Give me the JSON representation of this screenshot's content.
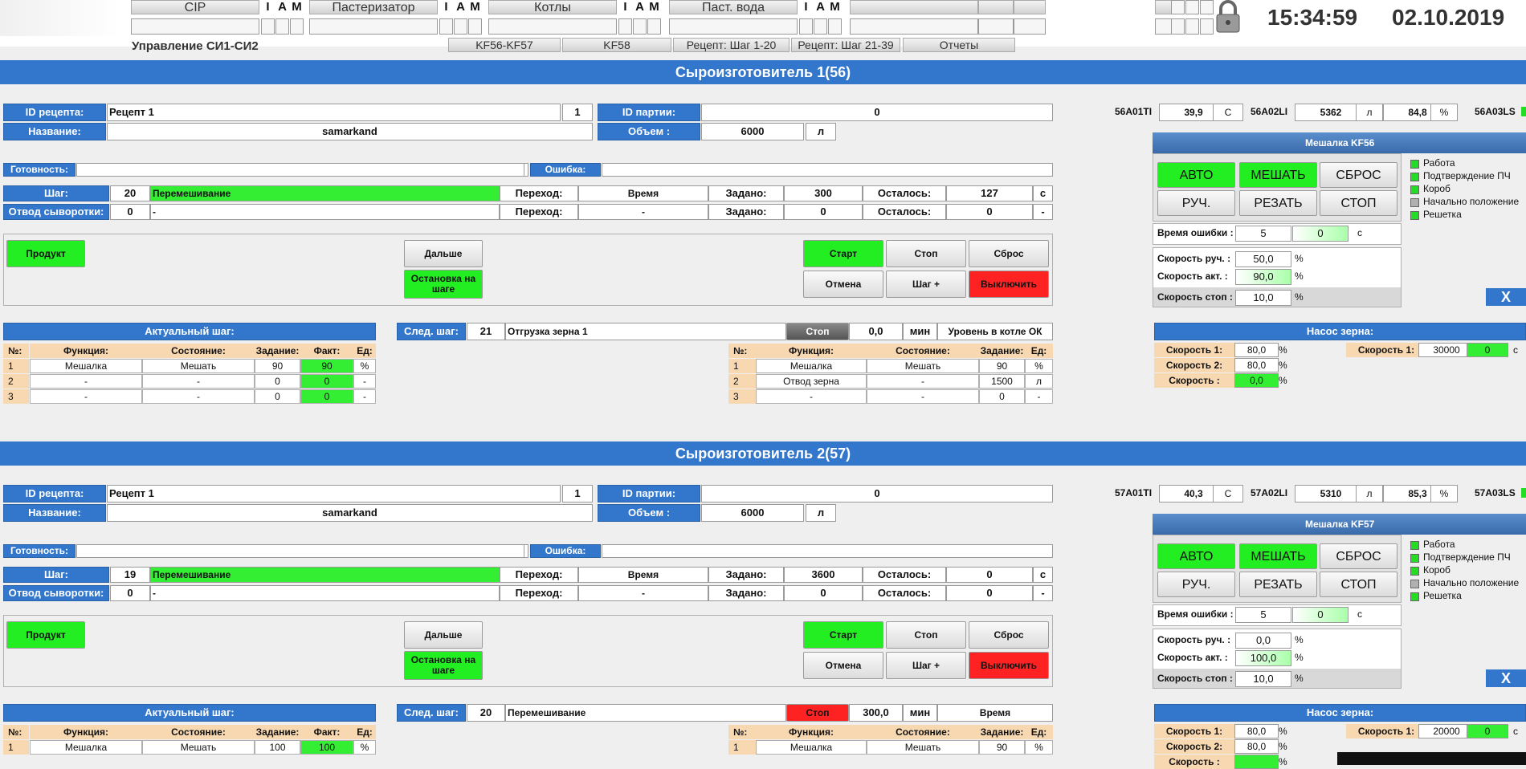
{
  "header": {
    "tabs": [
      "CIP",
      "Пастеризатор",
      "Котлы",
      "Паст. вода"
    ],
    "iam": [
      "I",
      "A",
      "M"
    ],
    "app_title": "Управление СИ1-СИ2",
    "subtabs": [
      "KF56-KF57",
      "KF58",
      "Рецепт: Шаг 1-20",
      "Рецепт: Шаг 21-39",
      "Отчеты"
    ],
    "time": "15:34:59",
    "date": "02.10.2019",
    "lock_icon": "padlock-icon"
  },
  "l": {
    "recipe_id": "ID рецепта:",
    "name": "Название:",
    "batch_id": "ID партии:",
    "volume": "Объем :",
    "ready": "Готовность:",
    "error": "Ошибка:",
    "step": "Шаг:",
    "whey": "Отвод сыворотки:",
    "transition": "Переход:",
    "set": "Задано:",
    "remaining": "Осталось:",
    "btn_product": "Продукт",
    "btn_next": "Дальше",
    "btn_stop_step": "Остановка на шаге",
    "btn_start": "Старт",
    "btn_stop": "Стоп",
    "btn_reset": "Сброс",
    "btn_cancel": "Отмена",
    "btn_step_plus": "Шаг +",
    "btn_off": "Выключить",
    "actual_step": "Актуальный шаг:",
    "next_step": "След. шаг:",
    "col_no": "№:",
    "col_func": "Функция:",
    "col_state": "Состояние:",
    "col_task": "Задание:",
    "col_fact": "Факт:",
    "col_unit": "Ед:",
    "mixer_btns": [
      "АВТО",
      "МЕШАТЬ",
      "СБРОС",
      "РУЧ.",
      "РЕЗАТЬ",
      "СТОП"
    ],
    "indicators": [
      "Работа",
      "Подтверждение ПЧ",
      "Короб",
      "Начально положение",
      "Решетка"
    ],
    "error_time": "Время ошибки :",
    "speed_man": "Скорость руч. :",
    "speed_act": "Скорость акт. :",
    "speed_stop": "Скорость стоп :",
    "pump_title": "Насос зерна:",
    "speed1": "Скорость 1:",
    "speed2": "Скорость 2:",
    "speed": "Скорость :",
    "close": "X",
    "min": "мин",
    "sec": "с",
    "l": "л",
    "pct": "%",
    "degC": "C"
  },
  "units": [
    {
      "title": "Сыроизготовитель 1(56)",
      "recipe": "Рецепт 1",
      "recipe_num": "1",
      "name": "samarkand",
      "batch": "0",
      "volume": "6000",
      "step_num": "20",
      "step_name": "Перемешивание",
      "trans": "Время",
      "set": "300",
      "rem": "127",
      "unit": "c",
      "whey_num": "0",
      "whey_name": "-",
      "whey_trans": "-",
      "whey_set": "0",
      "whey_rem": "0",
      "whey_unit": "-",
      "next_num": "21",
      "next_name": "Отгрузка зерна 1",
      "next_stop": "Стоп",
      "next_val": "0,0",
      "next_cond": "Уровень в котле ОК",
      "next_stop_color": "dark",
      "act_rows": [
        [
          "1",
          "Мешалка",
          "Мешать",
          "90",
          "90",
          "%"
        ],
        [
          "2",
          "-",
          "-",
          "0",
          "0",
          "-"
        ],
        [
          "3",
          "-",
          "-",
          "0",
          "0",
          "-"
        ]
      ],
      "next_rows": [
        [
          "1",
          "Мешалка",
          "Мешать",
          "90",
          "%"
        ],
        [
          "2",
          "Отвод зерна",
          "-",
          "1500",
          "л"
        ],
        [
          "3",
          "-",
          "-",
          "0",
          "-"
        ]
      ],
      "ti_tag": "56A01TI",
      "ti_val": "39,9",
      "li_tag": "56A02LI",
      "li_val": "5362",
      "li_pct": "84,8",
      "ls_tag": "56A03LS",
      "mixer_title": "Мешалка KF56",
      "ind_colors": [
        "#22dd22",
        "#22dd22",
        "#22dd22",
        "#b0b0b0",
        "#22dd22"
      ],
      "err_time": "5",
      "err_val": "0",
      "sp_man": "50,0",
      "sp_act": "90,0",
      "sp_stop": "10,0",
      "p1": "80,0",
      "p2": "80,0",
      "p": "0,0",
      "p_right": "30000",
      "p_right2": "0"
    },
    {
      "title": "Сыроизготовитель 2(57)",
      "recipe": "Рецепт 1",
      "recipe_num": "1",
      "name": "samarkand",
      "batch": "0",
      "volume": "6000",
      "step_num": "19",
      "step_name": "Перемешивание",
      "trans": "Время",
      "set": "3600",
      "rem": "0",
      "unit": "c",
      "whey_num": "0",
      "whey_name": "-",
      "whey_trans": "-",
      "whey_set": "0",
      "whey_rem": "0",
      "whey_unit": "-",
      "next_num": "20",
      "next_name": "Перемешивание",
      "next_stop": "Стоп",
      "next_val": "300,0",
      "next_cond": "Время",
      "next_stop_color": "red",
      "act_rows": [
        [
          "1",
          "Мешалка",
          "Мешать",
          "100",
          "100",
          "%"
        ]
      ],
      "next_rows": [
        [
          "1",
          "Мешалка",
          "Мешать",
          "90",
          "%"
        ]
      ],
      "ti_tag": "57A01TI",
      "ti_val": "40,3",
      "li_tag": "57A02LI",
      "li_val": "5310",
      "li_pct": "85,3",
      "ls_tag": "57A03LS",
      "mixer_title": "Мешалка KF57",
      "ind_colors": [
        "#22dd22",
        "#22dd22",
        "#22dd22",
        "#b0b0b0",
        "#22dd22"
      ],
      "err_time": "5",
      "err_val": "0",
      "sp_man": "0,0",
      "sp_act": "100,0",
      "sp_stop": "10,0",
      "p1": "80,0",
      "p2": "80,0",
      "p": "",
      "p_right": "20000",
      "p_right2": "0"
    }
  ]
}
